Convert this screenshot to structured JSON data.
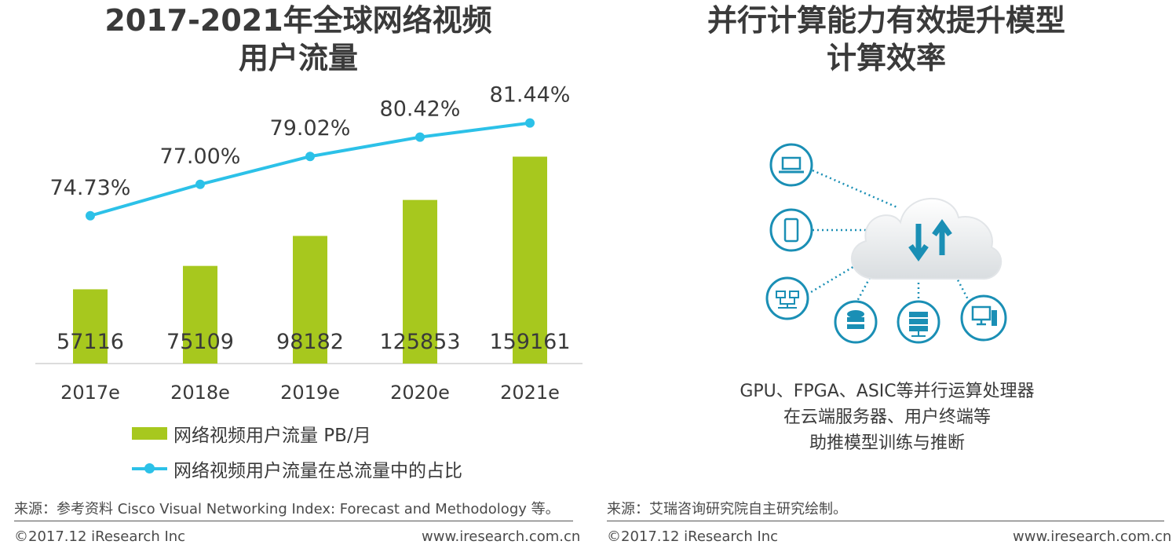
{
  "left": {
    "title_line1": "2017-2021年全球网络视频",
    "title_line2": "用户流量",
    "legend_bar": "网络视频用户流量 PB/月",
    "legend_line": "网络视频用户流量在总流量中的占比",
    "source": "来源：参考资料 Cisco Visual Networking Index: Forecast and Methodology 等。",
    "copyright": "©2017.12 iResearch Inc",
    "url": "www.iresearch.com.cn"
  },
  "right": {
    "title_line1": "并行计算能力有效提升模型",
    "title_line2": "计算效率",
    "caption_line1": "GPU、FPGA、ASIC等并行运算处理器",
    "caption_line2": "在云端服务器、用户终端等",
    "caption_line3": "助推模型训练与推断",
    "source": "来源：艾瑞咨询研究院自主研究绘制。",
    "copyright": "©2017.12 iResearch Inc",
    "url": "www.iresearch.com.cn",
    "icons": [
      "laptop-icon",
      "smartphone-icon",
      "network-icon",
      "database-icon",
      "server-icon",
      "desktop-icon",
      "cloud-icon"
    ]
  },
  "colors": {
    "bar": "#a7c81e",
    "line": "#2cc1e8",
    "icon": "#1a8fb5"
  },
  "chart_data": {
    "type": "bar",
    "title": "2017-2021年全球网络视频用户流量",
    "categories": [
      "2017e",
      "2018e",
      "2019e",
      "2020e",
      "2021e"
    ],
    "series": [
      {
        "name": "网络视频用户流量 PB/月",
        "type": "bar",
        "values": [
          57116,
          75109,
          98182,
          125853,
          159161
        ],
        "labels": [
          "57116",
          "75109",
          "98182",
          "125853",
          "159161"
        ]
      },
      {
        "name": "网络视频用户流量在总流量中的占比",
        "type": "line",
        "values": [
          74.73,
          77.0,
          79.02,
          80.42,
          81.44
        ],
        "labels": [
          "74.73%",
          "77.00%",
          "79.02%",
          "80.42%",
          "81.44%"
        ]
      }
    ],
    "bar_ylim": [
      0,
      180000
    ],
    "line_ylim": [
      70,
      82.5
    ],
    "legend_position": "bottom"
  }
}
